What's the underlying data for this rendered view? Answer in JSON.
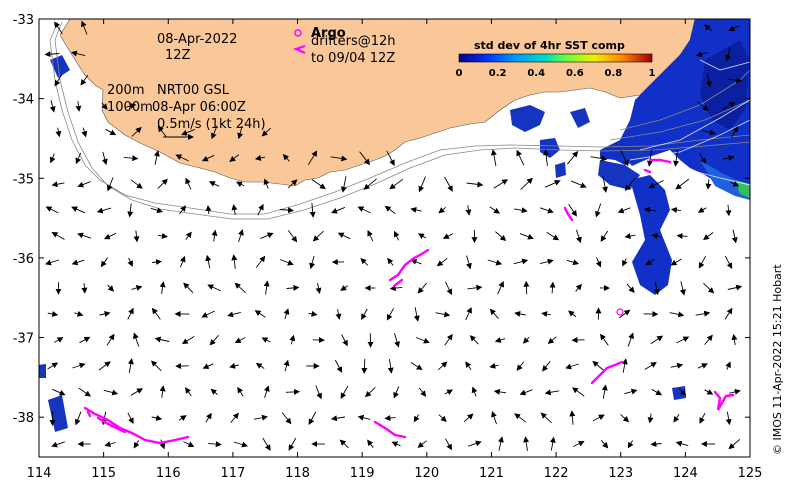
{
  "map": {
    "lon_ticks": [
      "114",
      "115",
      "116",
      "117",
      "118",
      "119",
      "120",
      "121",
      "122",
      "123",
      "124",
      "125"
    ],
    "lat_ticks": [
      "-33",
      "-34",
      "-35",
      "-36",
      "-37",
      "-38"
    ],
    "lon_range": [
      114,
      125
    ],
    "lat_range": [
      -38.5,
      -33
    ],
    "colors": {
      "land": "#fac898",
      "ocean": "#ffffff",
      "argo": "#ff00ff",
      "sst_low": "#00008b",
      "contour": "#888888"
    }
  },
  "annotations": {
    "date": "08-Apr-2022",
    "time": "12Z",
    "depth_200": "200m",
    "depth_1000": "1000m",
    "model": "NRT00 GSL",
    "model_time": "08-Apr 06:00Z",
    "scale": "0.5m/s (1kt 24h)"
  },
  "legend": {
    "argo_label": "Argo",
    "drifters_line1": "drifters@12h",
    "drifters_line2": "to 09/04 12Z"
  },
  "colorbar": {
    "title": "std dev of 4hr SST comp",
    "ticks": [
      "0",
      "0.2",
      "0.4",
      "0.6",
      "0.8",
      "1"
    ]
  },
  "credit": "© IMOS 11-Apr-2022 15:21 Hobart"
}
